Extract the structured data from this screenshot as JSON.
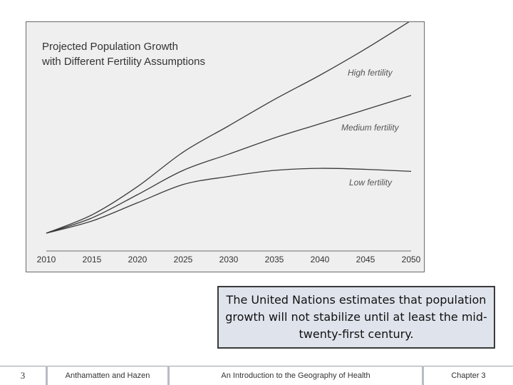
{
  "chart_data": {
    "type": "line",
    "title_lines": [
      "Projected Population Growth",
      "with Different Fertility Assumptions"
    ],
    "xlabel": "",
    "ylabel": "",
    "x": [
      2010,
      2015,
      2020,
      2025,
      2030,
      2035,
      2040,
      2045,
      2050
    ],
    "xlim": [
      2010,
      2050
    ],
    "ylim": [
      0,
      100
    ],
    "y_axis_visible": false,
    "grid": false,
    "series": [
      {
        "name": "High fertility",
        "values": [
          0,
          9,
          23,
          40,
          53,
          66,
          78,
          91,
          105
        ],
        "color": "#3a3a3a"
      },
      {
        "name": "Medium fertility",
        "values": [
          0,
          7.5,
          19,
          31,
          39,
          47,
          54,
          61,
          68
        ],
        "color": "#3a3a3a"
      },
      {
        "name": "Low fertility",
        "values": [
          0,
          6,
          15,
          24,
          28,
          31,
          32,
          31.5,
          30.5
        ],
        "color": "#3a3a3a"
      }
    ]
  },
  "callout": {
    "text": "The United Nations estimates that population growth will not stabilize until at least the mid-twenty-first century."
  },
  "footer": {
    "page_number": "3",
    "authors": "Anthamatten and Hazen",
    "book_title": "An Introduction to the Geography of Health",
    "chapter": "Chapter 3"
  }
}
